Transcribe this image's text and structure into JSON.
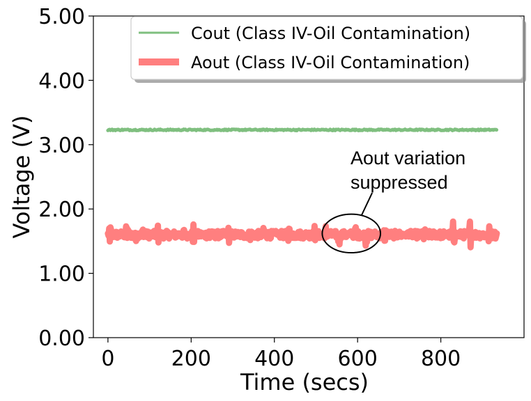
{
  "chart_data": {
    "type": "line",
    "xlabel": "Time (secs)",
    "ylabel": "Voltage (V)",
    "xlim": [
      -35,
      1000
    ],
    "ylim": [
      0,
      5
    ],
    "xticks": [
      "0",
      "200",
      "400",
      "600",
      "800"
    ],
    "yticks": [
      "0.00",
      "1.00",
      "2.00",
      "3.00",
      "4.00",
      "5.00"
    ],
    "grid": false,
    "legend_position": "top-right",
    "series": [
      {
        "name": "Cout (Class IV-Oil Contamination)",
        "color": "#7fbf7f",
        "x_range": [
          0,
          935
        ],
        "mean": 3.23,
        "noise": 0.01
      },
      {
        "name": "Aout (Class IV-Oil Contamination)",
        "color": "#ff7f7f",
        "x_range": [
          0,
          935
        ],
        "mean": 1.6,
        "noise": 0.06,
        "spike_times": [
          5,
          45,
          65,
          85,
          120,
          185,
          205,
          245,
          290,
          345,
          375,
          410,
          435,
          495,
          525,
          555,
          595,
          620,
          665,
          720,
          760,
          790,
          830,
          870,
          915
        ],
        "spike_amplitude": 0.22
      }
    ],
    "annotation": {
      "text_line1": "Aout variation",
      "text_line2": "suppressed",
      "ellipse_center": [
        585,
        1.62
      ],
      "ellipse_width_data": 140,
      "ellipse_height_data": 0.6,
      "arrow_tail": [
        635,
        2.25
      ]
    }
  }
}
